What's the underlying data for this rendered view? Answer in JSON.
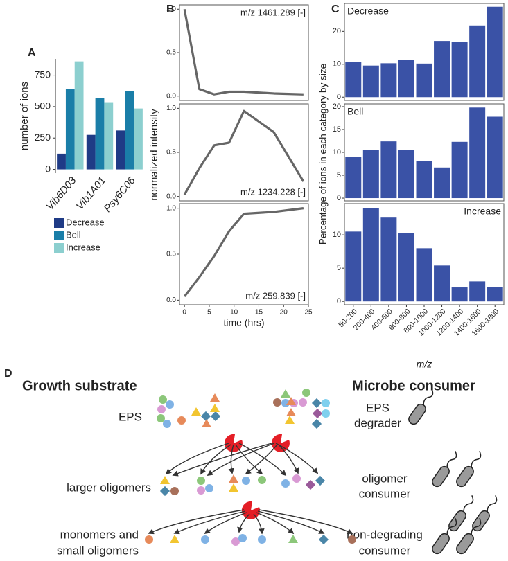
{
  "chart_data": [
    {
      "panel": "A",
      "type": "bar",
      "ylabel": "number of ions",
      "categories": [
        "Vib6D03",
        "Vib1A01",
        "Psy6C06"
      ],
      "series": [
        {
          "name": "Decrease",
          "color": "#1f3b86",
          "values": [
            125,
            275,
            310
          ]
        },
        {
          "name": "Bell",
          "color": "#1a7ea8",
          "values": [
            640,
            570,
            625
          ]
        },
        {
          "name": "Increase",
          "color": "#8ccfcf",
          "values": [
            860,
            535,
            485
          ]
        }
      ],
      "ylim": [
        -30,
        880
      ],
      "yticks": [
        0,
        250,
        500,
        750
      ],
      "legend": "bottom"
    },
    {
      "panel": "B",
      "type": "line",
      "ylabel": "normalized intensity",
      "xlabel": "time (hrs)",
      "x": [
        0,
        3,
        6,
        9,
        12,
        18,
        24
      ],
      "xlim": [
        -1,
        25
      ],
      "xticks": [
        0,
        5,
        10,
        15,
        20,
        25
      ],
      "ylim": [
        -0.05,
        1.05
      ],
      "yticks": [
        {
          "value": 0,
          "label": "0.0"
        },
        0.5,
        {
          "value": 1,
          "label": "1.0"
        }
      ],
      "series": [
        {
          "name": "m/z 1461.289 [-]",
          "color": "#666666",
          "values": [
            1.0,
            0.08,
            0.02,
            0.05,
            0.05,
            0.03,
            0.02
          ]
        },
        {
          "name": "m/z 1234.228 [-]",
          "color": "#666666",
          "values": [
            0.02,
            0.32,
            0.58,
            0.61,
            0.97,
            0.73,
            0.17
          ]
        },
        {
          "name": "m/z 259.839 [-]",
          "color": "#666666",
          "values": [
            0.04,
            0.25,
            0.48,
            0.75,
            0.94,
            0.96,
            1.0
          ]
        }
      ]
    },
    {
      "panel": "C",
      "type": "bar",
      "ylabel": "Percentage of ions in each category by size",
      "xlabel": "m/z",
      "color": "#3a52a6",
      "categories": [
        "50-200",
        "200-400",
        "400-600",
        "600-800",
        "800-1000",
        "1000-1200",
        "1200-1400",
        "1400-1600",
        "1600-1800"
      ],
      "series": [
        {
          "name": "Decrease",
          "values": [
            10.8,
            9.6,
            10.3,
            11.4,
            10.2,
            17.1,
            16.8,
            21.8,
            27.5
          ],
          "ylim": [
            -1,
            28.5
          ],
          "yticks": [
            0,
            10,
            20
          ]
        },
        {
          "name": "Bell",
          "values": [
            9.0,
            10.6,
            12.4,
            10.6,
            8.1,
            6.7,
            12.3,
            19.8,
            17.8
          ],
          "ylim": [
            -0.6,
            20.6
          ],
          "yticks": [
            0,
            5,
            10,
            15,
            20
          ]
        },
        {
          "name": "Increase",
          "values": [
            10.5,
            14.0,
            12.6,
            10.3,
            8.0,
            5.4,
            2.1,
            3.0,
            2.2
          ],
          "ylim": [
            -0.5,
            14.7
          ],
          "yticks": [
            0,
            5,
            10
          ]
        }
      ]
    }
  ],
  "diagram": {
    "panel": "D",
    "left_title": "Growth substrate",
    "right_title": "Microbe consumer",
    "rows": [
      {
        "substrate": [
          "EPS"
        ],
        "consumer": [
          "EPS",
          "degrader"
        ]
      },
      {
        "substrate": [
          "larger oligomers"
        ],
        "consumer": [
          "oligomer",
          "consumer"
        ]
      },
      {
        "substrate": [
          "monomers and",
          "small oligomers"
        ],
        "consumer": [
          "non-degrading",
          "consumer"
        ]
      }
    ]
  }
}
